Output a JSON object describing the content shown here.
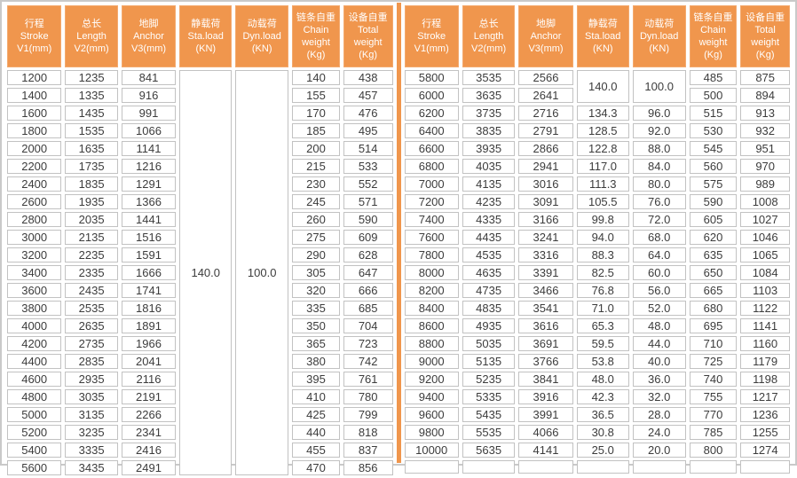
{
  "colors": {
    "accent": "#F0964D",
    "header_text": "#FFFFFF",
    "cell_border": "#C2C2C2",
    "outer_border": "#C9C9C9",
    "body_text": "#3C3C3C"
  },
  "tables": {
    "header_columns": [
      {
        "lines": [
          "行程",
          "Stroke",
          "V1(mm)"
        ]
      },
      {
        "lines": [
          "总长",
          "Length",
          "V2(mm)"
        ]
      },
      {
        "lines": [
          "地脚",
          "Anchor",
          "V3(mm)"
        ]
      },
      {
        "lines": [
          "静载荷",
          "Sta.load",
          "(KN)"
        ]
      },
      {
        "lines": [
          "动载荷",
          "Dyn.load",
          "(KN)"
        ]
      },
      {
        "lines": [
          "链条自重",
          "Chain",
          "weight",
          "(Kg)"
        ]
      },
      {
        "lines": [
          "设备自重",
          "Total",
          "weight",
          "(Kg)"
        ]
      }
    ],
    "left": {
      "rows": [
        [
          "1200",
          "1235",
          "841",
          {
            "t": "140.0",
            "rs": 23
          },
          {
            "t": "100.0",
            "rs": 23
          },
          "140",
          "438"
        ],
        [
          "1400",
          "1335",
          "916",
          "155",
          "457"
        ],
        [
          "1600",
          "1435",
          "991",
          "170",
          "476"
        ],
        [
          "1800",
          "1535",
          "1066",
          "185",
          "495"
        ],
        [
          "2000",
          "1635",
          "1141",
          "200",
          "514"
        ],
        [
          "2200",
          "1735",
          "1216",
          "215",
          "533"
        ],
        [
          "2400",
          "1835",
          "1291",
          "230",
          "552"
        ],
        [
          "2600",
          "1935",
          "1366",
          "245",
          "571"
        ],
        [
          "2800",
          "2035",
          "1441",
          "260",
          "590"
        ],
        [
          "3000",
          "2135",
          "1516",
          "275",
          "609"
        ],
        [
          "3200",
          "2235",
          "1591",
          "290",
          "628"
        ],
        [
          "3400",
          "2335",
          "1666",
          "305",
          "647"
        ],
        [
          "3600",
          "2435",
          "1741",
          "320",
          "666"
        ],
        [
          "3800",
          "2535",
          "1816",
          "335",
          "685"
        ],
        [
          "4000",
          "2635",
          "1891",
          "350",
          "704"
        ],
        [
          "4200",
          "2735",
          "1966",
          "365",
          "723"
        ],
        [
          "4400",
          "2835",
          "2041",
          "380",
          "742"
        ],
        [
          "4600",
          "2935",
          "2116",
          "395",
          "761"
        ],
        [
          "4800",
          "3035",
          "2191",
          "410",
          "780"
        ],
        [
          "5000",
          "3135",
          "2266",
          "425",
          "799"
        ],
        [
          "5200",
          "3235",
          "2341",
          "440",
          "818"
        ],
        [
          "5400",
          "3335",
          "2416",
          "455",
          "837"
        ],
        [
          "5600",
          "3435",
          "2491",
          "470",
          "856"
        ]
      ]
    },
    "right": {
      "rows": [
        [
          "5800",
          "3535",
          "2566",
          {
            "t": "140.0",
            "rs": 2
          },
          {
            "t": "100.0",
            "rs": 2
          },
          "485",
          "875"
        ],
        [
          "6000",
          "3635",
          "2641",
          "500",
          "894"
        ],
        [
          "6200",
          "3735",
          "2716",
          "134.3",
          "96.0",
          "515",
          "913"
        ],
        [
          "6400",
          "3835",
          "2791",
          "128.5",
          "92.0",
          "530",
          "932"
        ],
        [
          "6600",
          "3935",
          "2866",
          "122.8",
          "88.0",
          "545",
          "951"
        ],
        [
          "6800",
          "4035",
          "2941",
          "117.0",
          "84.0",
          "560",
          "970"
        ],
        [
          "7000",
          "4135",
          "3016",
          "111.3",
          "80.0",
          "575",
          "989"
        ],
        [
          "7200",
          "4235",
          "3091",
          "105.5",
          "76.0",
          "590",
          "1008"
        ],
        [
          "7400",
          "4335",
          "3166",
          "99.8",
          "72.0",
          "605",
          "1027"
        ],
        [
          "7600",
          "4435",
          "3241",
          "94.0",
          "68.0",
          "620",
          "1046"
        ],
        [
          "7800",
          "4535",
          "3316",
          "88.3",
          "64.0",
          "635",
          "1065"
        ],
        [
          "8000",
          "4635",
          "3391",
          "82.5",
          "60.0",
          "650",
          "1084"
        ],
        [
          "8200",
          "4735",
          "3466",
          "76.8",
          "56.0",
          "665",
          "1103"
        ],
        [
          "8400",
          "4835",
          "3541",
          "71.0",
          "52.0",
          "680",
          "1122"
        ],
        [
          "8600",
          "4935",
          "3616",
          "65.3",
          "48.0",
          "695",
          "1141"
        ],
        [
          "8800",
          "5035",
          "3691",
          "59.5",
          "44.0",
          "710",
          "1160"
        ],
        [
          "9000",
          "5135",
          "3766",
          "53.8",
          "40.0",
          "725",
          "1179"
        ],
        [
          "9200",
          "5235",
          "3841",
          "48.0",
          "36.0",
          "740",
          "1198"
        ],
        [
          "9400",
          "5335",
          "3916",
          "42.3",
          "32.0",
          "755",
          "1217"
        ],
        [
          "9600",
          "5435",
          "3991",
          "36.5",
          "28.0",
          "770",
          "1236"
        ],
        [
          "9800",
          "5535",
          "4066",
          "30.8",
          "24.0",
          "785",
          "1255"
        ],
        [
          "10000",
          "5635",
          "4141",
          "25.0",
          "20.0",
          "800",
          "1274"
        ],
        [
          "",
          "",
          "",
          "",
          "",
          "",
          ""
        ]
      ]
    }
  }
}
